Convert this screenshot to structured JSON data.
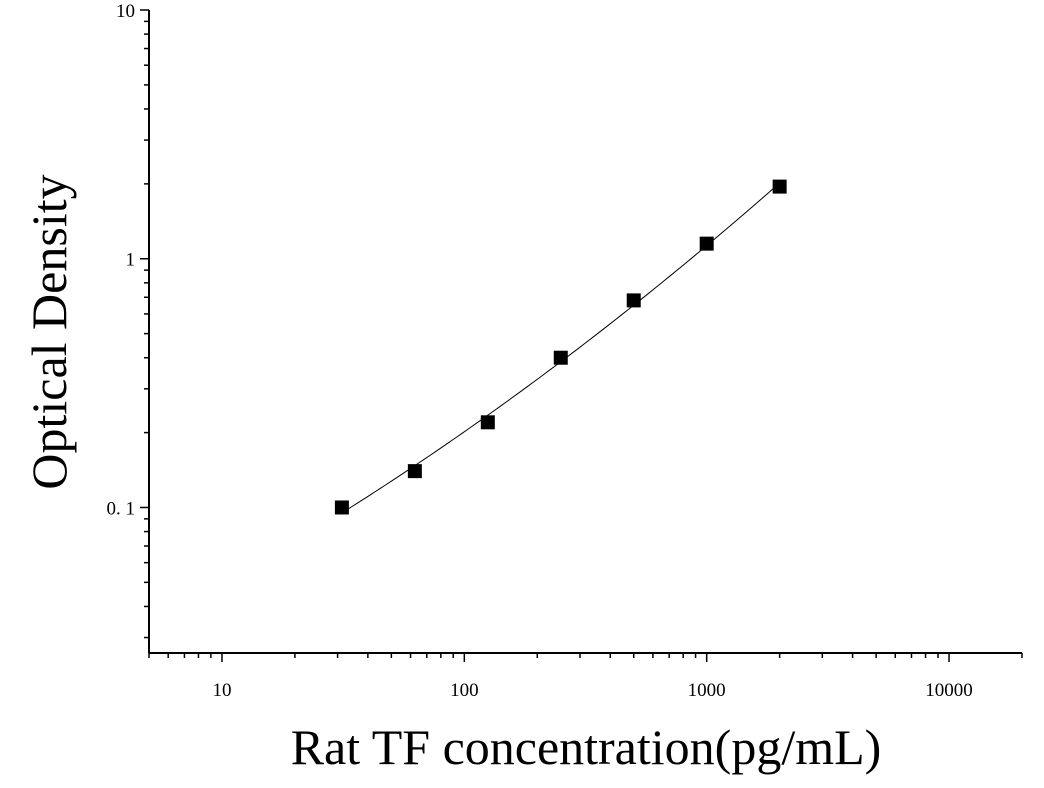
{
  "chart_data": {
    "type": "scatter",
    "xlabel": "Rat TF concentration(pg/mL)",
    "ylabel": "Optical Density",
    "xscale": "log",
    "yscale": "log",
    "xlim": [
      5,
      20000
    ],
    "ylim": [
      0.026,
      10
    ],
    "x_tick_labels": [
      "10",
      "100",
      "1000",
      "10000"
    ],
    "y_tick_labels": [
      "0. 1",
      "1",
      "10"
    ],
    "grid": false,
    "legend": "none",
    "series": [
      {
        "x": [
          31.25,
          62.5,
          125,
          250,
          500,
          1000,
          2000
        ],
        "y": [
          0.1,
          0.14,
          0.22,
          0.4,
          0.68,
          1.15,
          1.95
        ],
        "marker": "square",
        "fit_line": true
      }
    ],
    "colors": {
      "marker": "#000000",
      "line": "#000000",
      "axis": "#000000"
    }
  }
}
